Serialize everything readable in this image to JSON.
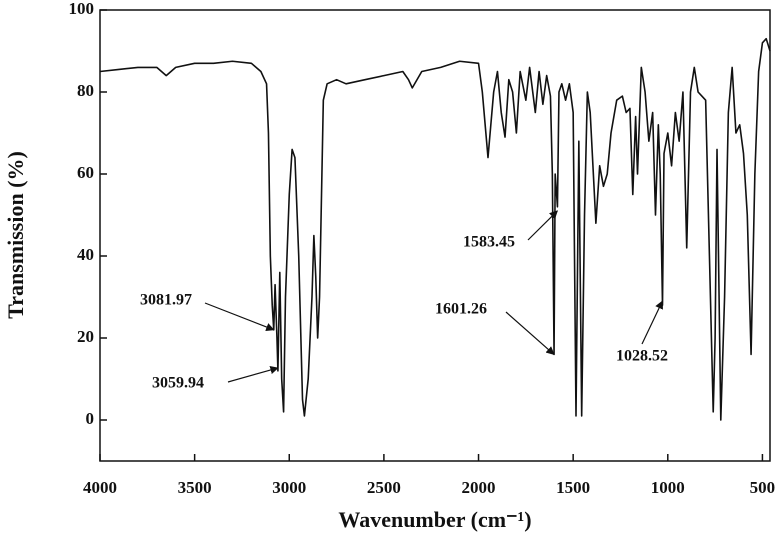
{
  "chart_data": {
    "type": "line",
    "xlabel": "Wavenumber (cm⁻¹)",
    "ylabel": "Transmission (%)",
    "xlim": [
      4000,
      460
    ],
    "ylim": [
      -10,
      100
    ],
    "xticks": [
      4000,
      3500,
      3000,
      2500,
      2000,
      1500,
      1000,
      500
    ],
    "yticks": [
      0,
      20,
      40,
      60,
      80,
      100
    ],
    "series": [
      {
        "color": "#111111",
        "x": [
          4000,
          3900,
          3800,
          3700,
          3650,
          3600,
          3500,
          3400,
          3300,
          3200,
          3150,
          3120,
          3110,
          3100,
          3090,
          3082,
          3075,
          3065,
          3060,
          3050,
          3040,
          3030,
          3020,
          3000,
          2985,
          2970,
          2950,
          2930,
          2920,
          2900,
          2880,
          2870,
          2860,
          2850,
          2840,
          2820,
          2800,
          2750,
          2700,
          2600,
          2500,
          2400,
          2370,
          2350,
          2300,
          2200,
          2100,
          2000,
          1980,
          1950,
          1920,
          1900,
          1880,
          1860,
          1840,
          1820,
          1800,
          1780,
          1750,
          1730,
          1700,
          1680,
          1660,
          1640,
          1620,
          1610,
          1601,
          1595,
          1583,
          1575,
          1560,
          1540,
          1520,
          1500,
          1485,
          1470,
          1455,
          1440,
          1425,
          1410,
          1380,
          1360,
          1340,
          1320,
          1300,
          1270,
          1240,
          1220,
          1200,
          1185,
          1170,
          1160,
          1140,
          1120,
          1100,
          1080,
          1065,
          1050,
          1040,
          1028,
          1020,
          1000,
          980,
          960,
          940,
          920,
          900,
          880,
          860,
          840,
          820,
          800,
          780,
          760,
          750,
          740,
          720,
          700,
          680,
          660,
          640,
          620,
          600,
          580,
          560,
          540,
          520,
          500,
          480,
          460
        ],
        "values": [
          85,
          85.5,
          86,
          86,
          84,
          86,
          87,
          87,
          87.5,
          87,
          85,
          82,
          70,
          40,
          28,
          22,
          33,
          20,
          12,
          36,
          10,
          2,
          30,
          55,
          66,
          64,
          40,
          5,
          1,
          10,
          30,
          45,
          35,
          20,
          30,
          78,
          82,
          83,
          82,
          83,
          84,
          85,
          83,
          81,
          85,
          86,
          87.5,
          87,
          80,
          64,
          80,
          85,
          75,
          69,
          83,
          80,
          70,
          85,
          78,
          86,
          75,
          85,
          77,
          84,
          79,
          60,
          16,
          60,
          52,
          80,
          82,
          78,
          82,
          75,
          1,
          68,
          1,
          50,
          80,
          75,
          48,
          62,
          57,
          60,
          70,
          78,
          79,
          75,
          76,
          55,
          74,
          60,
          86,
          80,
          68,
          75,
          50,
          72,
          60,
          28,
          65,
          70,
          62,
          75,
          68,
          80,
          42,
          80,
          86,
          80,
          79,
          78,
          40,
          2,
          20,
          66,
          0,
          30,
          75,
          86,
          70,
          72,
          65,
          50,
          16,
          60,
          85,
          92,
          93,
          90
        ]
      }
    ],
    "annotations": [
      {
        "x": 3081.97,
        "y": 22
      },
      {
        "x": 3059.94,
        "y": 12.7
      },
      {
        "x": 1601.26,
        "y": 16
      },
      {
        "x": 1583.45,
        "y": 51
      },
      {
        "x": 1028.52,
        "y": 29
      }
    ]
  }
}
